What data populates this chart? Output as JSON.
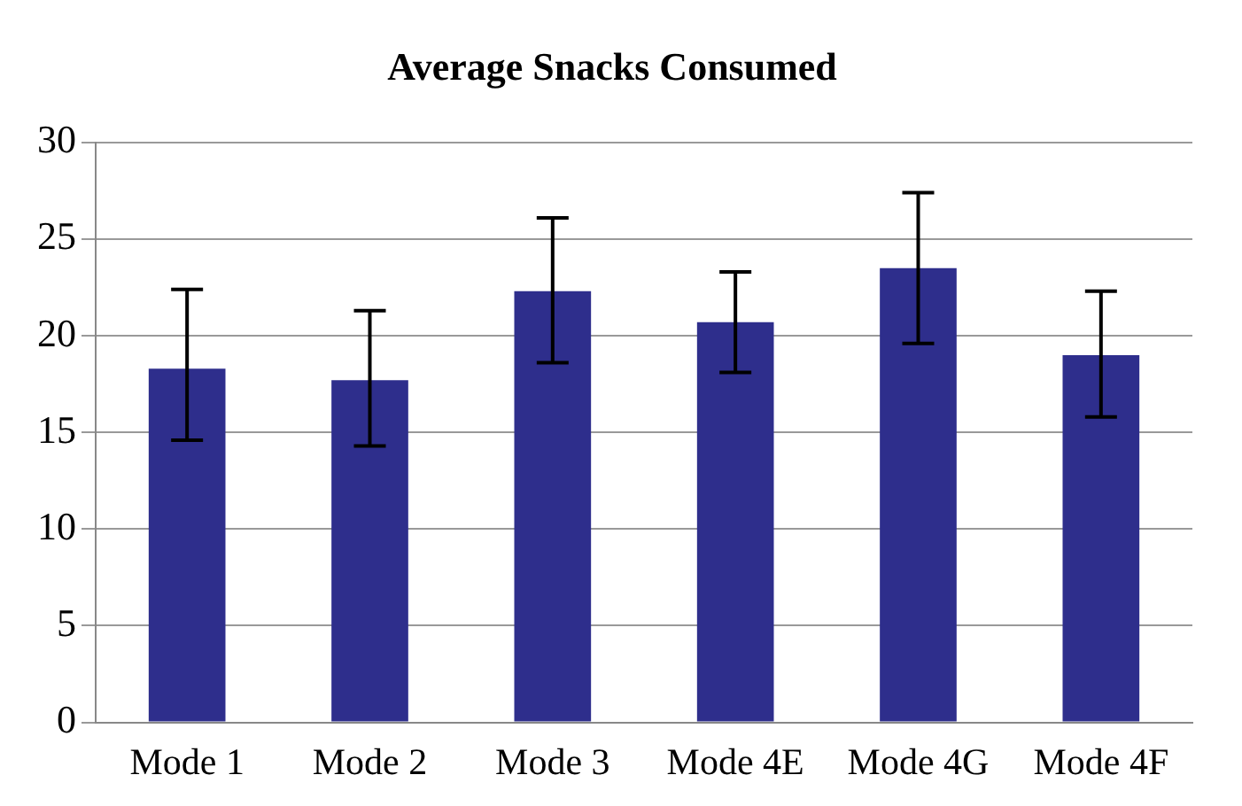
{
  "chart_data": {
    "type": "bar",
    "title": "Average Snacks Consumed",
    "categories": [
      "Mode 1",
      "Mode 2",
      "Mode 3",
      "Mode 4E",
      "Mode 4G",
      "Mode 4F"
    ],
    "values": [
      18.3,
      17.7,
      22.3,
      20.7,
      23.5,
      19.0
    ],
    "errors": [
      [
        14.6,
        22.4
      ],
      [
        14.3,
        21.3
      ],
      [
        18.6,
        26.1
      ],
      [
        18.1,
        23.3
      ],
      [
        19.6,
        27.4
      ],
      [
        15.8,
        22.3
      ]
    ],
    "color": "#2e2e8c",
    "ylim": [
      0,
      30
    ],
    "yticks": [
      0,
      5,
      10,
      15,
      20,
      25,
      30
    ],
    "grid": "y",
    "legend": false
  }
}
